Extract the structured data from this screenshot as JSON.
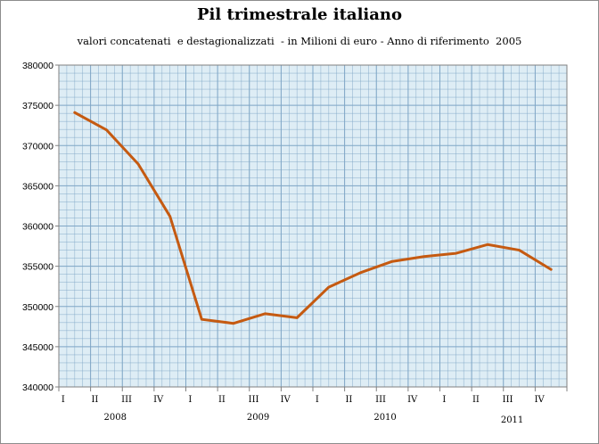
{
  "chart_data": {
    "type": "line",
    "title": "Pil trimestrale italiano",
    "subtitle": "valori concatenati  e destagionalizzati  - in Milioni di euro - Anno di riferimento  2005",
    "xlabel": "",
    "ylabel": "",
    "ylim": [
      340000,
      380000
    ],
    "yticks": [
      340000,
      345000,
      350000,
      355000,
      360000,
      365000,
      370000,
      375000,
      380000
    ],
    "categories": [
      "I",
      "II",
      "III",
      "IV",
      "I",
      "II",
      "III",
      "IV",
      "I",
      "II",
      "III",
      "IV",
      "I",
      "II",
      "III",
      "IV"
    ],
    "years": [
      {
        "label": "2008",
        "quarter_index": 1.5
      },
      {
        "label": "2009",
        "quarter_index": 6.0
      },
      {
        "label": "2010",
        "quarter_index": 10.0
      },
      {
        "label": "2011",
        "quarter_index": 14.0
      }
    ],
    "grid": true,
    "legend": "none",
    "series": [
      {
        "color": "#c55a11",
        "values": [
          374100,
          371950,
          367700,
          361200,
          348400,
          347900,
          349100,
          348600,
          352400,
          354200,
          355600,
          356200,
          356600,
          357700,
          357000,
          354600
        ]
      }
    ],
    "colors": {
      "plot_bg": "#deedf5",
      "grid": "#7fa6c6",
      "axis": "#808080",
      "line": "#c55a11"
    }
  }
}
